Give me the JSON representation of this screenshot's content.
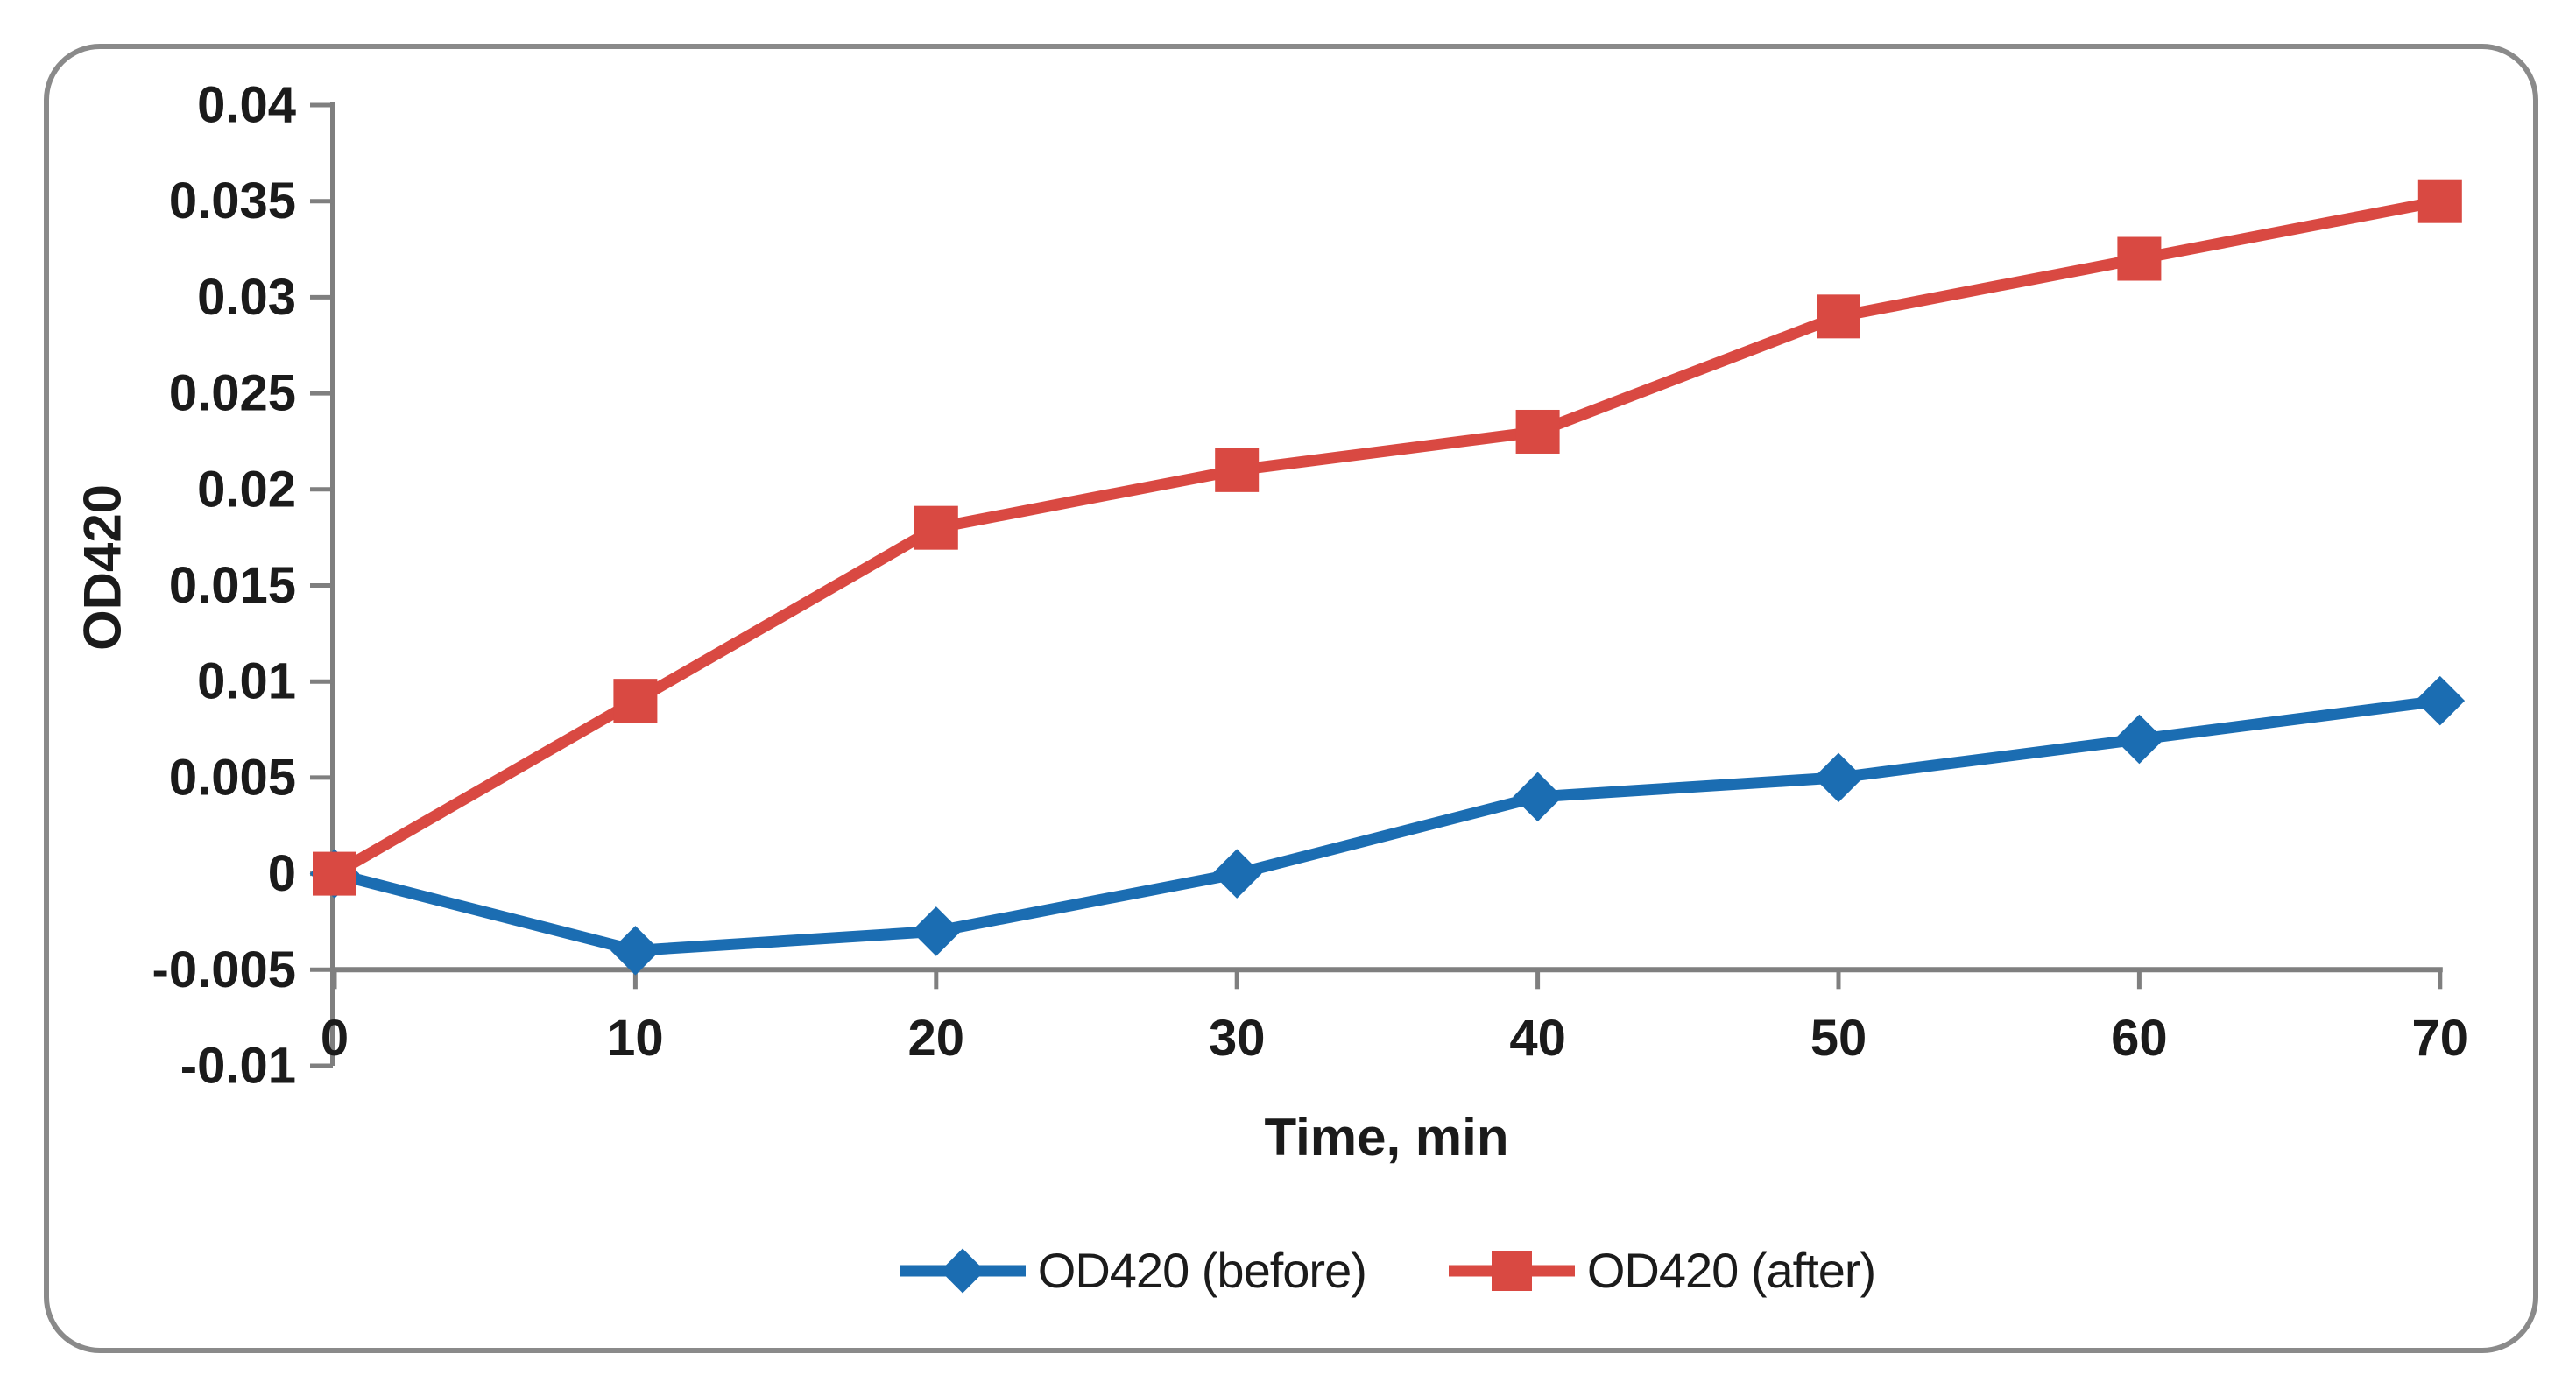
{
  "figure": {
    "background": "#ffffff",
    "frame_color": "#8a8a8a"
  },
  "chart_data": {
    "type": "line",
    "title": "",
    "xlabel": "Time, min",
    "ylabel": "OD420",
    "categories": [
      0,
      10,
      20,
      30,
      40,
      50,
      60,
      70
    ],
    "x_tick_labels": [
      "0",
      "10",
      "20",
      "30",
      "40",
      "50",
      "60",
      "70"
    ],
    "series": [
      {
        "name": "OD420 (before)",
        "marker": "diamond",
        "color": "#1b6db2",
        "values": [
          0,
          -0.004,
          -0.003,
          0,
          0.004,
          0.005,
          0.007,
          0.009
        ]
      },
      {
        "name": "OD420 (after)",
        "marker": "square",
        "color": "#d94942",
        "values": [
          0,
          0.009,
          0.018,
          0.021,
          0.023,
          0.029,
          0.032,
          0.035
        ]
      }
    ],
    "ylim": [
      -0.01,
      0.04
    ],
    "y_tick_step": 0.005,
    "y_tick_values": [
      0.04,
      0.035,
      0.03,
      0.025,
      0.02,
      0.015,
      0.01,
      0.005,
      0,
      -0.005,
      -0.01
    ],
    "y_tick_labels": [
      "0.04",
      "0.035",
      "0.03",
      "0.025",
      "0.02",
      "0.015",
      "0.01",
      "0.005",
      "0",
      "-0.005",
      "-0.01"
    ],
    "x_axis_cross_value": -0.005,
    "grid": false,
    "legend_position": "bottom",
    "axis_color": "#7f7f7f",
    "text_color": "#1b1b1b"
  }
}
